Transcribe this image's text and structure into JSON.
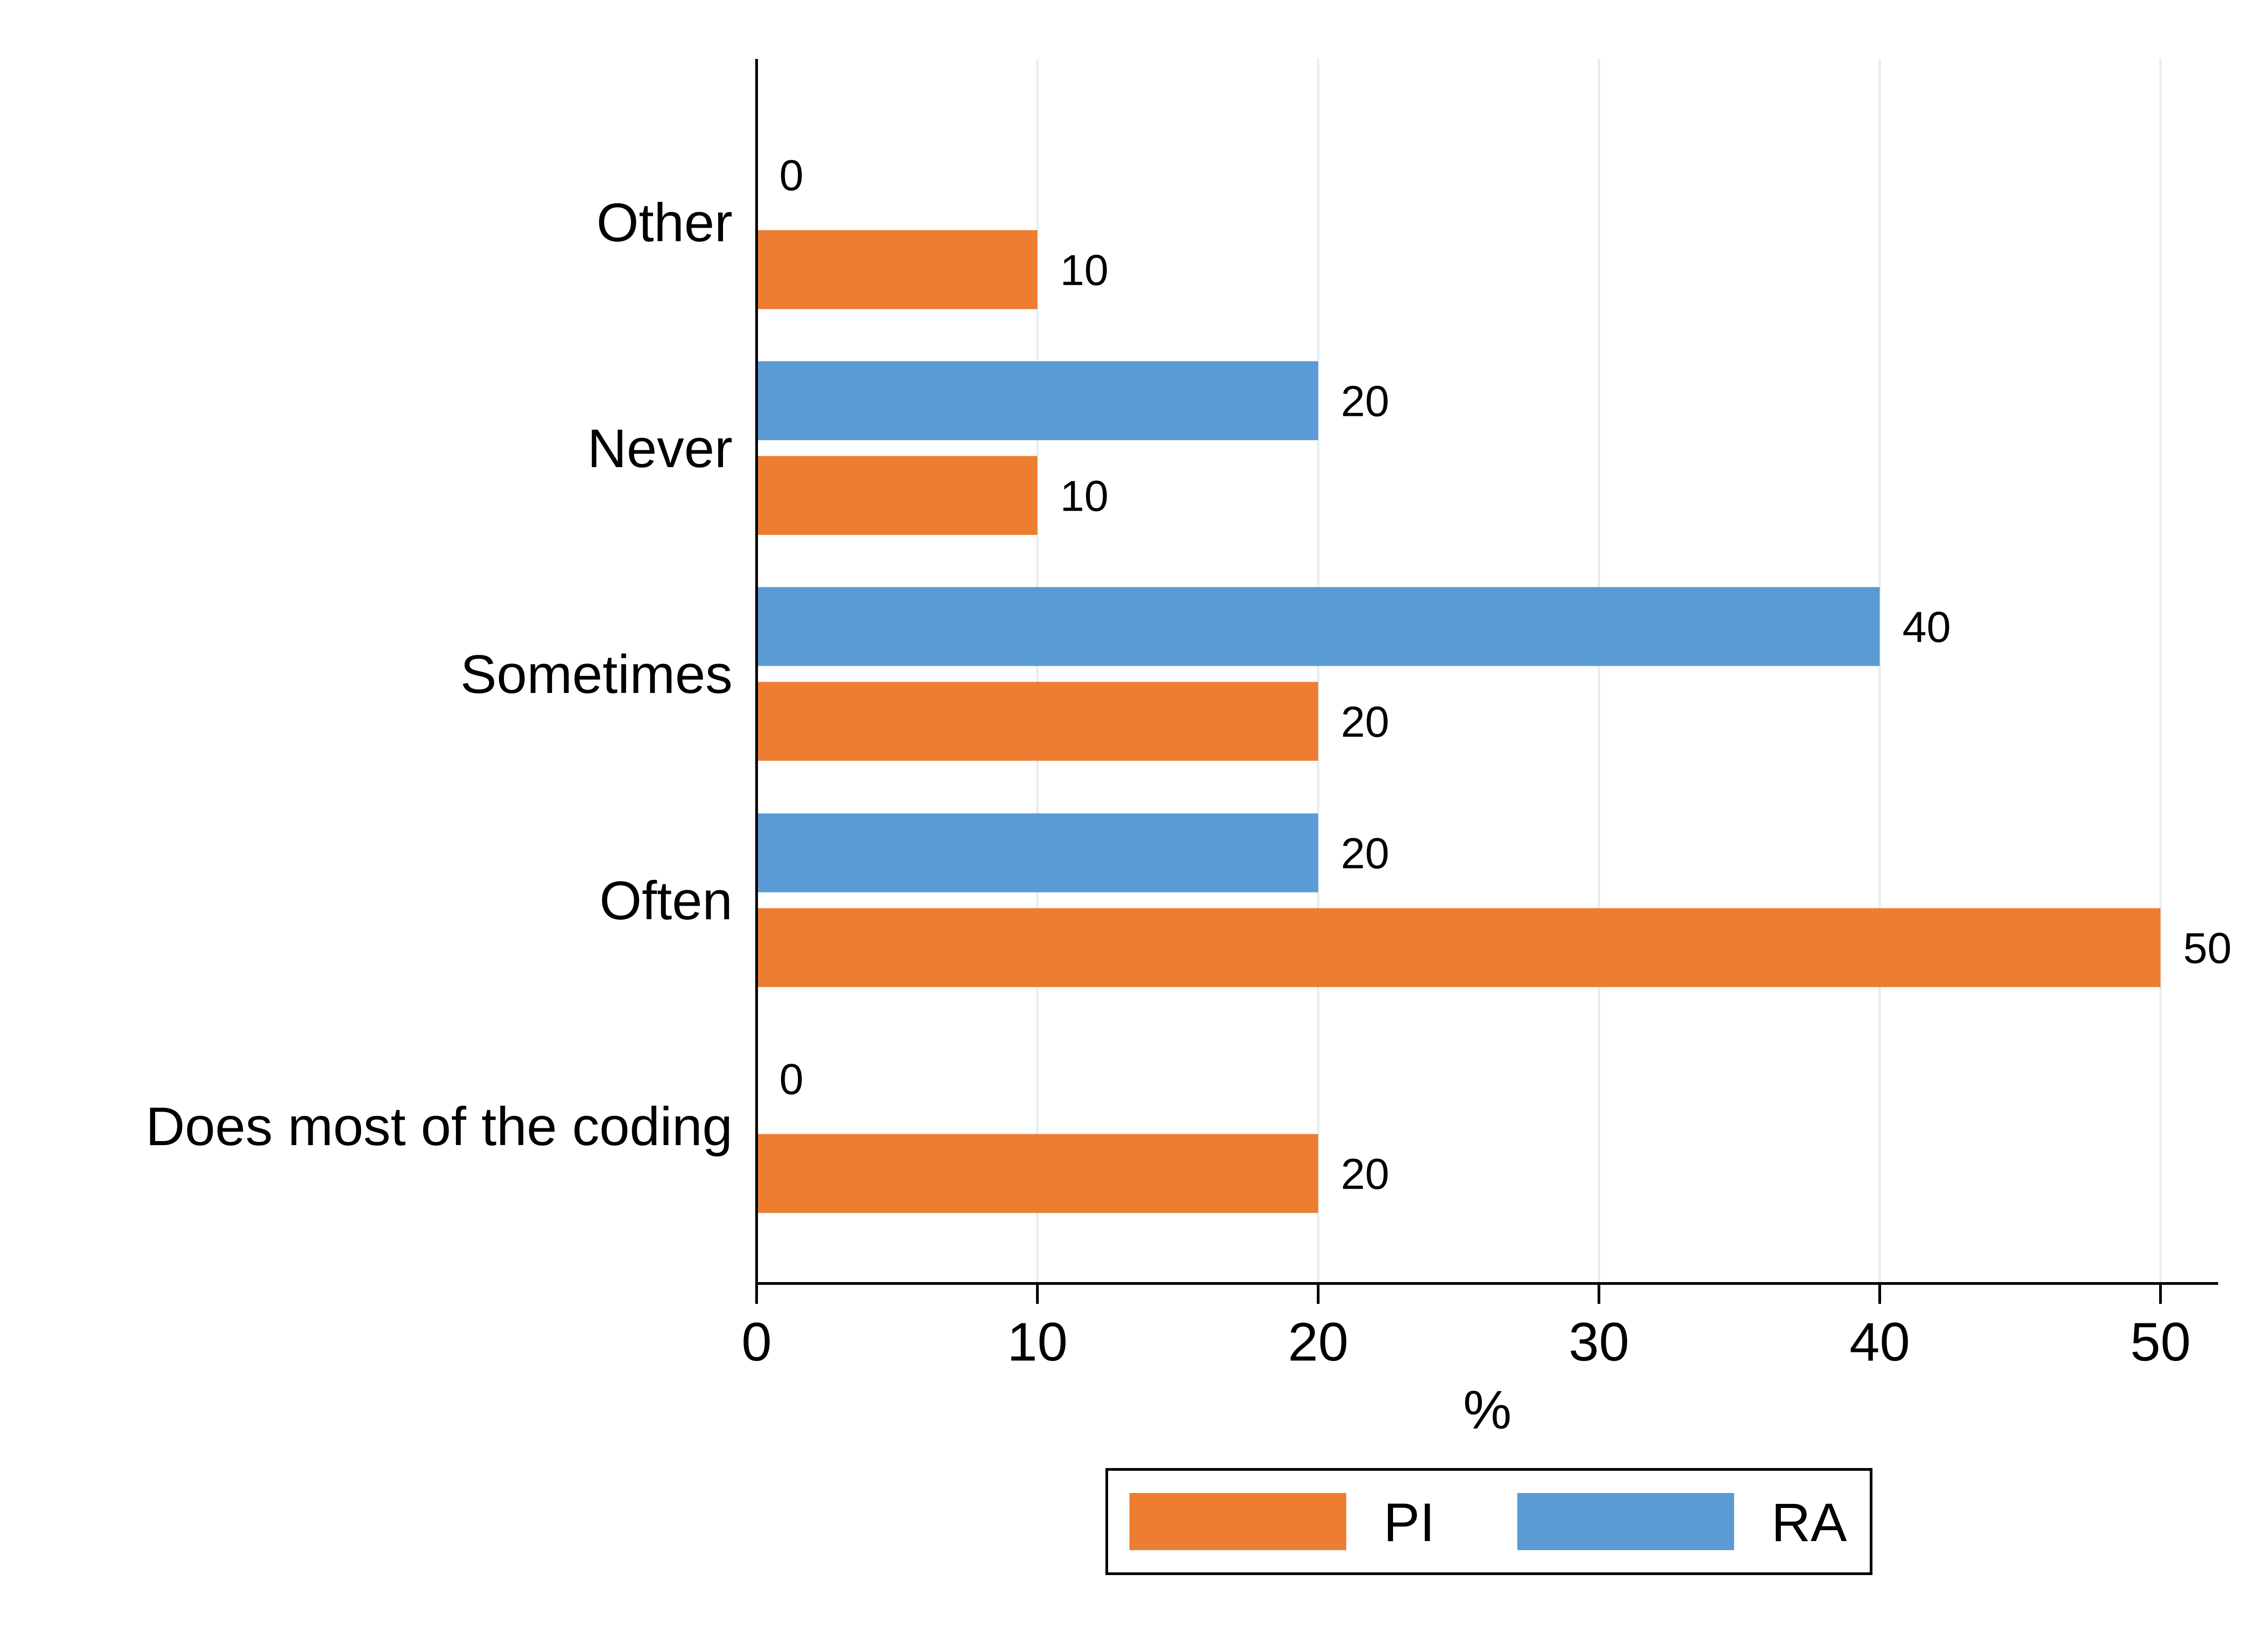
{
  "chart_data": {
    "type": "bar",
    "orientation": "horizontal",
    "categories": [
      "Other",
      "Never",
      "Sometimes",
      "Often",
      "Does most of the coding"
    ],
    "series": [
      {
        "name": "RA",
        "color": "#5b9bd5",
        "values": [
          0,
          20,
          40,
          20,
          0
        ]
      },
      {
        "name": "PI",
        "color": "#ed7d31",
        "values": [
          10,
          10,
          20,
          50,
          20
        ]
      }
    ],
    "xlabel": "%",
    "ylabel": "",
    "xlim": [
      0,
      52
    ],
    "xticks": [
      0,
      10,
      20,
      30,
      40,
      50
    ],
    "xtick_labels": [
      "0",
      "10",
      "20",
      "30",
      "40",
      "50"
    ],
    "grid": true,
    "legend": {
      "position": "bottom",
      "entries": [
        {
          "name": "PI",
          "color": "#ed7d31"
        },
        {
          "name": "RA",
          "color": "#5b9bd5"
        }
      ]
    }
  }
}
